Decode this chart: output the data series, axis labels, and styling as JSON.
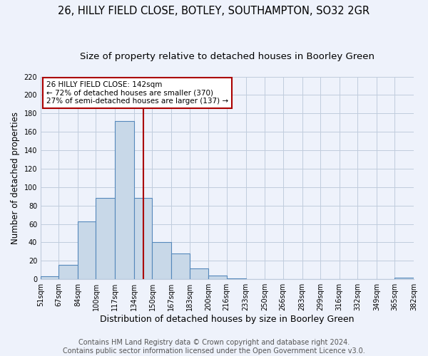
{
  "title": "26, HILLY FIELD CLOSE, BOTLEY, SOUTHAMPTON, SO32 2GR",
  "subtitle": "Size of property relative to detached houses in Boorley Green",
  "xlabel": "Distribution of detached houses by size in Boorley Green",
  "ylabel": "Number of detached properties",
  "bin_edges": [
    51,
    67,
    84,
    100,
    117,
    134,
    150,
    167,
    183,
    200,
    216,
    233,
    250,
    266,
    283,
    299,
    316,
    332,
    349,
    365,
    382
  ],
  "bin_heights": [
    3,
    16,
    63,
    88,
    172,
    88,
    40,
    28,
    12,
    4,
    1,
    0,
    0,
    0,
    0,
    0,
    0,
    0,
    0,
    2
  ],
  "bar_color": "#c8d8e8",
  "bar_edge_color": "#5588bb",
  "vline_x": 142,
  "vline_color": "#aa0000",
  "annotation_text": "26 HILLY FIELD CLOSE: 142sqm\n← 72% of detached houses are smaller (370)\n27% of semi-detached houses are larger (137) →",
  "annotation_box_color": "white",
  "annotation_box_edge": "#aa0000",
  "ylim": [
    0,
    220
  ],
  "yticks": [
    0,
    20,
    40,
    60,
    80,
    100,
    120,
    140,
    160,
    180,
    200,
    220
  ],
  "tick_labels": [
    "51sqm",
    "67sqm",
    "84sqm",
    "100sqm",
    "117sqm",
    "134sqm",
    "150sqm",
    "167sqm",
    "183sqm",
    "200sqm",
    "216sqm",
    "233sqm",
    "250sqm",
    "266sqm",
    "283sqm",
    "299sqm",
    "316sqm",
    "332sqm",
    "349sqm",
    "365sqm",
    "382sqm"
  ],
  "footer_line1": "Contains HM Land Registry data © Crown copyright and database right 2024.",
  "footer_line2": "Contains public sector information licensed under the Open Government Licence v3.0.",
  "background_color": "#eef2fb",
  "grid_color": "#c0ccdd",
  "title_fontsize": 10.5,
  "subtitle_fontsize": 9.5,
  "xlabel_fontsize": 9,
  "ylabel_fontsize": 8.5,
  "tick_fontsize": 7,
  "footer_fontsize": 7,
  "annot_fontsize": 7.5
}
